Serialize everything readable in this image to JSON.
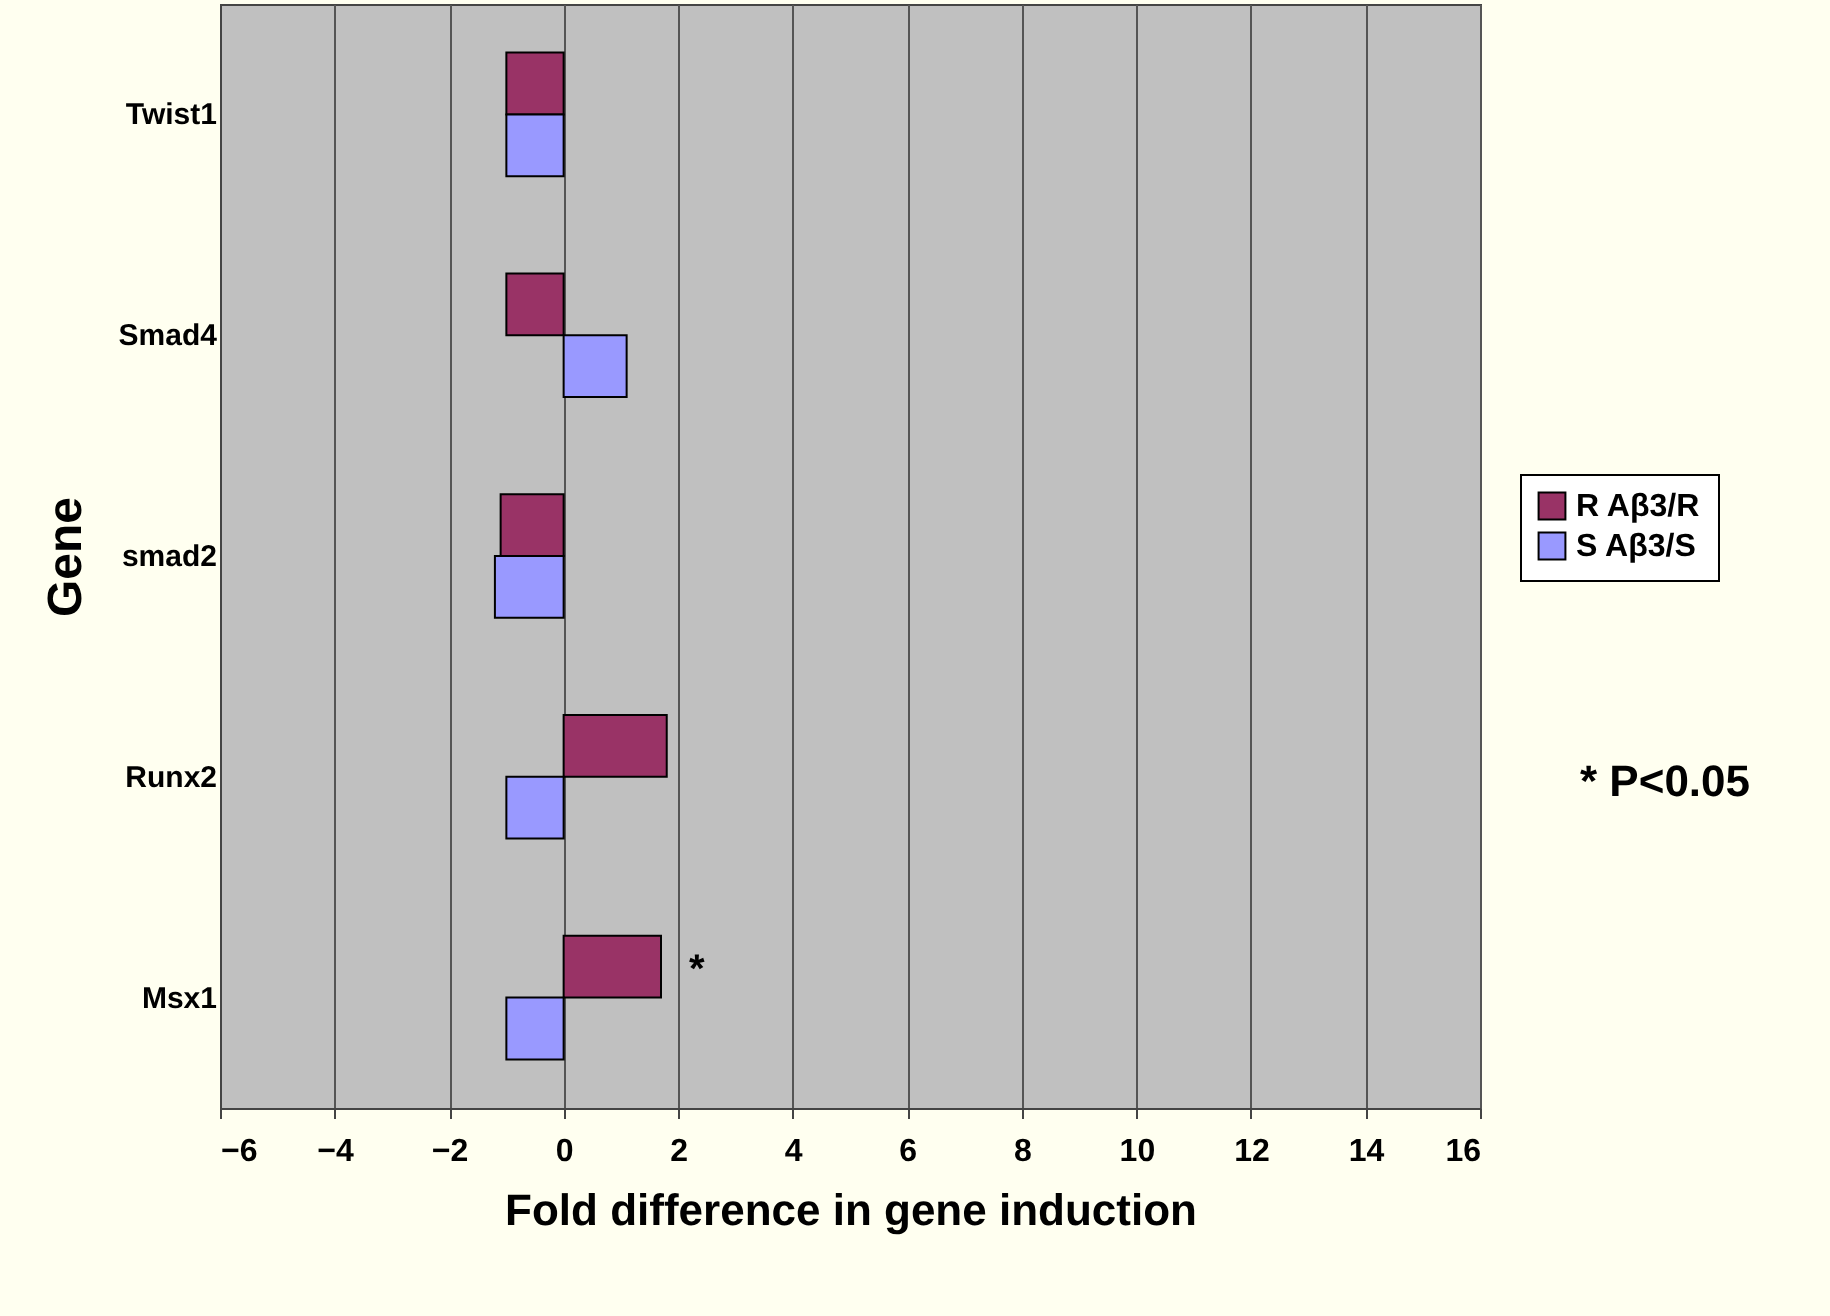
{
  "chart_data": {
    "type": "bar",
    "orientation": "horizontal",
    "xlabel": "Fold difference in gene induction",
    "ylabel": "Gene",
    "categories": [
      "Twist1",
      "Smad4",
      "smad2",
      "Runx2",
      "Msx1"
    ],
    "series": [
      {
        "name": "R Aβ3/R",
        "color": "#993366",
        "values": [
          -1.0,
          -1.0,
          -1.1,
          1.8,
          1.7
        ]
      },
      {
        "name": "S Aβ3/S",
        "color": "#9999ff",
        "values": [
          -1.0,
          1.1,
          -1.2,
          -1.0,
          -1.0
        ]
      }
    ],
    "xlim": [
      -6,
      16
    ],
    "xticks": [
      -6,
      -4,
      -2,
      0,
      2,
      4,
      6,
      8,
      10,
      12,
      14,
      16
    ],
    "grid": "x",
    "legend": "right",
    "annotations": [
      {
        "text": "*",
        "x": 1.7,
        "y": "Msx1"
      },
      "* P<0.05"
    ]
  }
}
